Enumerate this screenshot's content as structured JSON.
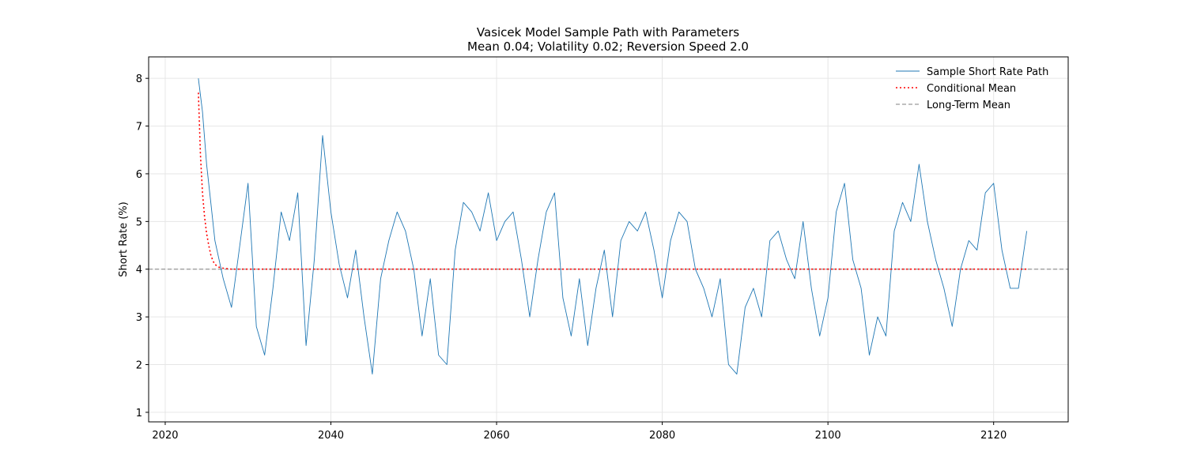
{
  "chart_data": {
    "type": "line",
    "title": "Vasicek Model Sample Path with Parameters",
    "subtitle": "Mean 0.04; Volatility 0.02; Reversion Speed 2.0",
    "xlabel": "",
    "ylabel": "Short Rate (%)",
    "xlim": [
      2018.0,
      2129.0
    ],
    "ylim": [
      0.8,
      8.45
    ],
    "x_ticks": [
      2020,
      2040,
      2060,
      2080,
      2100,
      2120
    ],
    "y_ticks": [
      1,
      2,
      3,
      4,
      5,
      6,
      7,
      8
    ],
    "grid": true,
    "legend_position": "top-right",
    "parameters": {
      "mean": 0.04,
      "volatility": 0.02,
      "reversion_speed": 2.0
    },
    "series": [
      {
        "name": "Sample Short Rate Path",
        "color": "#1f77b4",
        "style": "solid",
        "x": [
          2024.0,
          2024.5,
          2025.0,
          2025.5,
          2026.0,
          2027.0,
          2028.0,
          2029.0,
          2030.0,
          2031.0,
          2032.0,
          2033.0,
          2034.0,
          2035.0,
          2036.0,
          2037.0,
          2038.0,
          2039.0,
          2040.0,
          2041.0,
          2042.0,
          2043.0,
          2044.0,
          2045.0,
          2046.0,
          2047.0,
          2048.0,
          2049.0,
          2050.0,
          2051.0,
          2052.0,
          2053.0,
          2054.0,
          2055.0,
          2056.0,
          2057.0,
          2058.0,
          2059.0,
          2060.0,
          2061.0,
          2062.0,
          2063.0,
          2064.0,
          2065.0,
          2066.0,
          2067.0,
          2068.0,
          2069.0,
          2070.0,
          2071.0,
          2072.0,
          2073.0,
          2074.0,
          2075.0,
          2076.0,
          2077.0,
          2078.0,
          2079.0,
          2080.0,
          2081.0,
          2082.0,
          2083.0,
          2084.0,
          2085.0,
          2086.0,
          2087.0,
          2088.0,
          2089.0,
          2090.0,
          2091.0,
          2092.0,
          2093.0,
          2094.0,
          2095.0,
          2096.0,
          2097.0,
          2098.0,
          2099.0,
          2100.0,
          2101.0,
          2102.0,
          2103.0,
          2104.0,
          2105.0,
          2106.0,
          2107.0,
          2108.0,
          2109.0,
          2110.0,
          2111.0,
          2112.0,
          2113.0,
          2114.0,
          2115.0,
          2116.0,
          2117.0,
          2118.0,
          2119.0,
          2120.0,
          2121.0,
          2122.0,
          2123.0,
          2124.0
        ],
        "values": [
          8.0,
          7.3,
          6.2,
          5.4,
          4.6,
          3.8,
          3.2,
          4.5,
          5.8,
          2.8,
          2.2,
          3.6,
          5.2,
          4.6,
          5.6,
          2.4,
          4.2,
          6.8,
          5.2,
          4.1,
          3.4,
          4.4,
          3.0,
          1.8,
          3.8,
          4.6,
          5.2,
          4.8,
          4.0,
          2.6,
          3.8,
          2.2,
          2.0,
          4.4,
          5.4,
          5.2,
          4.8,
          5.6,
          4.6,
          5.0,
          5.2,
          4.2,
          3.0,
          4.2,
          5.2,
          5.6,
          3.4,
          2.6,
          3.8,
          2.4,
          3.6,
          4.4,
          3.0,
          4.6,
          5.0,
          4.8,
          5.2,
          4.4,
          3.4,
          4.6,
          5.2,
          5.0,
          4.0,
          3.6,
          3.0,
          3.8,
          2.0,
          1.8,
          3.2,
          3.6,
          3.0,
          4.6,
          4.8,
          4.2,
          3.8,
          5.0,
          3.6,
          2.6,
          3.4,
          5.2,
          5.8,
          4.2,
          3.6,
          2.2,
          3.0,
          2.6,
          4.8,
          5.4,
          5.0,
          6.2,
          5.0,
          4.2,
          3.6,
          2.8,
          4.0,
          4.6,
          4.4,
          5.6,
          5.8,
          4.4,
          3.6,
          3.6,
          4.8
        ]
      },
      {
        "name": "Conditional Mean",
        "color": "#ff0000",
        "style": "dotted",
        "x": [
          2024.0,
          2024.25,
          2024.5,
          2024.75,
          2025.0,
          2025.25,
          2025.5,
          2025.75,
          2026.0,
          2026.5,
          2027.0,
          2028.0,
          2030.0,
          2040.0,
          2060.0,
          2080.0,
          2100.0,
          2120.0,
          2124.0
        ],
        "values": [
          7.7,
          6.4,
          5.6,
          5.1,
          4.75,
          4.5,
          4.3,
          4.18,
          4.1,
          4.04,
          4.02,
          4.0,
          4.0,
          4.0,
          4.0,
          4.0,
          4.0,
          4.0,
          4.0
        ]
      },
      {
        "name": "Long-Term Mean",
        "color": "#808080",
        "style": "dashed",
        "y_constant": 4.0
      }
    ]
  }
}
